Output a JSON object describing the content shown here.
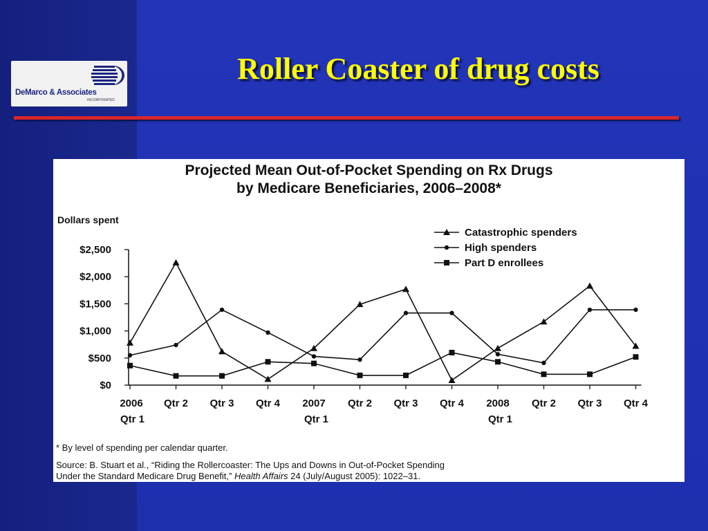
{
  "slide": {
    "title": "Roller Coaster of drug costs",
    "logo_name": "DeMarco & Associates",
    "logo_subtitle": "INCORPORATED"
  },
  "colors": {
    "background": "#1e2ea8",
    "left_band": "#14207e",
    "title": "#ffff00",
    "divider": "#d9252b",
    "panel": "#ffffff",
    "ink": "#111111"
  },
  "chart_data": {
    "type": "line",
    "title_line1": "Projected Mean Out-of-Pocket Spending on Rx Drugs",
    "title_line2": "by Medicare Beneficiaries, 2006–2008",
    "title_mark": "*",
    "ylabel": "Dollars spent",
    "ylim": [
      0,
      2500
    ],
    "yticks": [
      0,
      500,
      1000,
      1500,
      2000,
      2500
    ],
    "ytick_labels": [
      "$0",
      "$500",
      "$1,000",
      "$1,500",
      "$2,000",
      "$2,500"
    ],
    "grid": false,
    "legend_position": "top-right",
    "categories": [
      [
        "2006",
        "Qtr 1"
      ],
      [
        "Qtr 2",
        ""
      ],
      [
        "Qtr 3",
        ""
      ],
      [
        "Qtr 4",
        ""
      ],
      [
        "2007",
        "Qtr 1"
      ],
      [
        "Qtr 2",
        ""
      ],
      [
        "Qtr 3",
        ""
      ],
      [
        "Qtr 4",
        ""
      ],
      [
        "2008",
        "Qtr 1"
      ],
      [
        "Qtr 2",
        ""
      ],
      [
        "Qtr 3",
        ""
      ],
      [
        "Qtr 4",
        ""
      ]
    ],
    "series": [
      {
        "name": "Catastrophic spenders",
        "marker": "triangle",
        "values": [
          780,
          2260,
          620,
          110,
          680,
          1490,
          1770,
          90,
          680,
          1170,
          1830,
          720
        ]
      },
      {
        "name": "High spenders",
        "marker": "circle",
        "values": [
          550,
          740,
          1390,
          970,
          530,
          470,
          1330,
          1330,
          570,
          410,
          1390,
          1390
        ]
      },
      {
        "name": "Part D enrollees",
        "marker": "square",
        "values": [
          360,
          170,
          170,
          430,
          400,
          180,
          180,
          600,
          430,
          200,
          200,
          520
        ]
      }
    ],
    "footnote": "* By level of spending per calendar quarter.",
    "source_line1": "Source: B. Stuart et al., “Riding the Rollercoaster: The Ups and Downs in Out-of-Pocket Spending",
    "source_line2_pre": "Under the Standard Medicare Drug Benefit,” ",
    "source_line2_journal": "Health Affairs",
    "source_line2_post": " 24 (July/August 2005): 1022–31."
  }
}
